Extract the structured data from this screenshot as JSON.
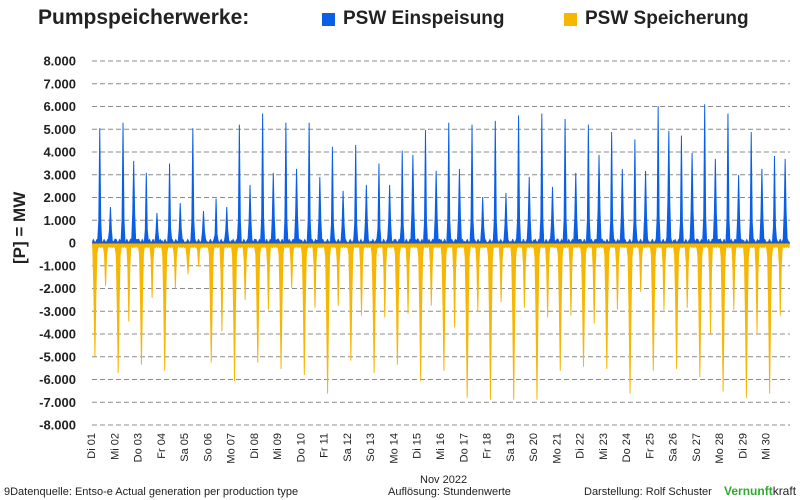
{
  "title": "Pumpspeicherwerke:",
  "legend": [
    {
      "label": "PSW Einspeisung",
      "color": "#0a5fe6"
    },
    {
      "label": "PSW Speicherung",
      "color": "#f7b600"
    }
  ],
  "footer": {
    "source": "9Datenquelle: Entso-e  Actual generation per production type",
    "resolution": "Auflösung: Stundenwerte",
    "author_prefix": "Darstellung:  Rolf Schuster",
    "brand_green": "Vernunft",
    "brand_black": "kraft"
  },
  "chart_data": {
    "type": "area",
    "title": "",
    "xlabel": "Nov 2022",
    "ylabel": "[P]  = MW",
    "ylim": [
      -8000,
      8000
    ],
    "yticks": [
      "8.000",
      "7.000",
      "6.000",
      "5.000",
      "4.000",
      "3.000",
      "2.000",
      "1.000",
      "0",
      "-1.000",
      "-2.000",
      "-3.000",
      "-4.000",
      "-5.000",
      "-6.000",
      "-7.000",
      "-8.000"
    ],
    "grid": true,
    "resolution": "hourly",
    "categories": [
      "Di 01",
      "Mi 02",
      "Do 03",
      "Fr 04",
      "Sa 05",
      "So 06",
      "Mo 07",
      "Di 08",
      "Mi 09",
      "Do 10",
      "Fr 11",
      "Sa 12",
      "So 13",
      "Mo 14",
      "Di 15",
      "Mi 16",
      "Do 17",
      "Fr 18",
      "Sa 19",
      "So 20",
      "Mo 21",
      "Di 22",
      "Mi 23",
      "Do 24",
      "Fr 25",
      "Sa 26",
      "So 27",
      "Mo 28",
      "Di 29",
      "Mi 30"
    ],
    "series": [
      {
        "name": "PSW Einspeisung",
        "color": "#0a5fe6",
        "daily_peaks": [
          6200,
          6500,
          3800,
          4300,
          6200,
          2400,
          6400,
          7000,
          6500,
          6500,
          5200,
          5300,
          4300,
          5000,
          6100,
          6500,
          6400,
          6600,
          6900,
          7000,
          6700,
          6400,
          6000,
          5600,
          7400,
          5800,
          7500,
          7000,
          6000,
          4700
        ],
        "daily_second_peaks": [
          1800,
          4100,
          1500,
          2000,
          1600,
          1800,
          2900,
          3500,
          3700,
          3300,
          2600,
          2900,
          2900,
          4400,
          3600,
          3700,
          2300,
          2500,
          3300,
          2800,
          3500,
          4400,
          3700,
          3600,
          5600,
          4500,
          4200,
          3400,
          3700,
          4200
        ]
      },
      {
        "name": "PSW Speicherung",
        "color": "#f7b600",
        "daily_troughs": [
          -5500,
          -6300,
          -5900,
          -6200,
          -1500,
          -5800,
          -6700,
          -5800,
          -6100,
          -6400,
          -7300,
          -5700,
          -6300,
          -5900,
          -6700,
          -6200,
          -7500,
          -7600,
          -7600,
          -7600,
          -6200,
          -6000,
          -6100,
          -7300,
          -6200,
          -6100,
          -6500,
          -7200,
          -7500,
          -7300
        ],
        "daily_second_troughs": [
          -2200,
          -4000,
          -2800,
          -2300,
          -1200,
          -4500,
          -2900,
          -3400,
          -2300,
          -3300,
          -3200,
          -3700,
          -3800,
          -3600,
          -3200,
          -4300,
          -3500,
          -3000,
          -3300,
          -3800,
          -3700,
          -4100,
          -3400,
          -2500,
          -3400,
          -3300,
          -4600,
          -3400,
          -4600,
          -3700
        ]
      }
    ]
  }
}
